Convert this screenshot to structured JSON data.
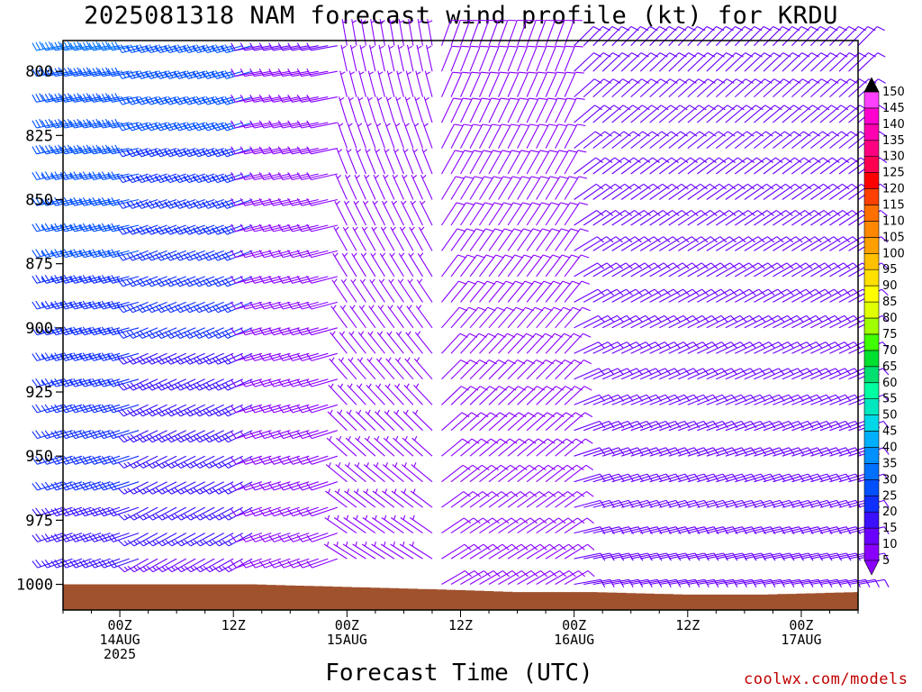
{
  "title": "2025081318 NAM forecast wind profile (kt) for KRDU",
  "credit": "coolwx.com/models",
  "chart_data": {
    "type": "wind-barb time-height section",
    "title": "2025081318 NAM forecast wind profile (kt) for KRDU",
    "xlabel": "Forecast Time (UTC)",
    "ylabel": "",
    "y_axis": {
      "ticks": [
        800,
        825,
        850,
        875,
        900,
        925,
        950,
        975,
        1000
      ],
      "lim": [
        788,
        1010
      ],
      "inverted": true,
      "units": "hPa"
    },
    "x_axis": {
      "ticks": [
        {
          "hour": 6,
          "lines": [
            "00Z",
            "14AUG",
            "2025"
          ]
        },
        {
          "hour": 18,
          "lines": [
            "12Z"
          ]
        },
        {
          "hour": 30,
          "lines": [
            "00Z",
            "15AUG"
          ]
        },
        {
          "hour": 42,
          "lines": [
            "12Z"
          ]
        },
        {
          "hour": 54,
          "lines": [
            "00Z",
            "16AUG"
          ]
        },
        {
          "hour": 66,
          "lines": [
            "12Z"
          ]
        },
        {
          "hour": 78,
          "lines": [
            "00Z",
            "17AUG"
          ]
        }
      ],
      "lim": [
        0,
        84
      ],
      "units": "hours after 2025081318"
    },
    "colorbar": {
      "levels": [
        5,
        10,
        15,
        20,
        25,
        30,
        35,
        40,
        45,
        50,
        55,
        60,
        65,
        70,
        75,
        80,
        85,
        90,
        95,
        100,
        105,
        110,
        115,
        120,
        125,
        130,
        135,
        140,
        145,
        150
      ],
      "colors": [
        "#8a00ff",
        "#6a00ff",
        "#3a10ff",
        "#1030ff",
        "#0050ff",
        "#0070ff",
        "#0090ff",
        "#00b0ff",
        "#00d8e8",
        "#00e8c0",
        "#00ffa0",
        "#00e070",
        "#00e030",
        "#40ff00",
        "#a0ff00",
        "#e0ff00",
        "#ffff00",
        "#ffe000",
        "#ffc000",
        "#ffa000",
        "#ff8800",
        "#ff7000",
        "#ff4000",
        "#ff0000",
        "#ff0050",
        "#ff0080",
        "#ff00b0",
        "#ff00d0",
        "#ff40ff",
        "#ff80ff"
      ],
      "extend": "both"
    },
    "levels_hpa": [
      790,
      800,
      810,
      820,
      830,
      840,
      850,
      860,
      870,
      880,
      890,
      900,
      910,
      920,
      930,
      940,
      950,
      960,
      970,
      980,
      990,
      1000
    ],
    "segments": [
      {
        "from_hour": 0,
        "to_hour": 9,
        "aloft_dir": 260,
        "aloft_spd": 30,
        "low_dir": 250,
        "low_spd": 18
      },
      {
        "from_hour": 9,
        "to_hour": 21,
        "aloft_dir": 255,
        "aloft_spd": 27,
        "low_dir": 240,
        "low_spd": 14
      },
      {
        "from_hour": 21,
        "to_hour": 30,
        "aloft_dir": 260,
        "aloft_spd": 10,
        "low_dir": 250,
        "low_spd": 9
      },
      {
        "from_hour": 30,
        "to_hour": 40,
        "aloft_dir": 350,
        "aloft_spd": 6,
        "low_dir": 300,
        "low_spd": 7
      },
      {
        "from_hour": 40,
        "to_hour": 54,
        "aloft_dir": 20,
        "aloft_spd": 8,
        "low_dir": 60,
        "low_spd": 9
      },
      {
        "from_hour": 54,
        "to_hour": 85,
        "aloft_dir": 45,
        "aloft_spd": 10,
        "low_dir": 80,
        "low_spd": 11
      }
    ],
    "surface_pressure": [
      {
        "hour": 0,
        "p": 1000
      },
      {
        "hour": 10,
        "p": 1000
      },
      {
        "hour": 20,
        "p": 1000
      },
      {
        "hour": 30,
        "p": 1001
      },
      {
        "hour": 40,
        "p": 1002
      },
      {
        "hour": 48,
        "p": 1003
      },
      {
        "hour": 56,
        "p": 1003
      },
      {
        "hour": 66,
        "p": 1004
      },
      {
        "hour": 74,
        "p": 1004
      },
      {
        "hour": 84,
        "p": 1003
      }
    ],
    "ground_color": "#a0522d"
  }
}
